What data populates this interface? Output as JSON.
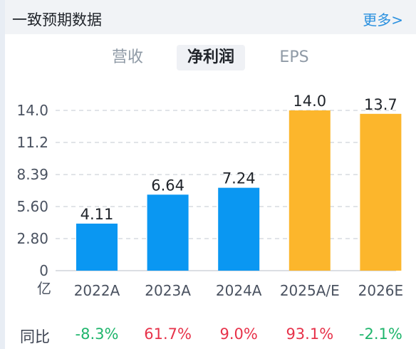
{
  "header": {
    "title": "一致预期数据",
    "more_label": "更多>"
  },
  "tabs": [
    {
      "label": "营收",
      "active": false
    },
    {
      "label": "净利润",
      "active": true
    },
    {
      "label": "EPS",
      "active": false
    }
  ],
  "chart_data": {
    "type": "bar",
    "categories": [
      "2022A",
      "2023A",
      "2024A",
      "2025A/E",
      "2026E"
    ],
    "values": [
      4.11,
      6.64,
      7.24,
      14.0,
      13.7
    ],
    "value_labels": [
      "4.11",
      "6.64",
      "7.24",
      "14.0",
      "13.7"
    ],
    "bar_colors": [
      "#0a97f2",
      "#0a97f2",
      "#0a97f2",
      "#fcb62c",
      "#fcb62c"
    ],
    "yticks": [
      "0",
      "2.80",
      "5.60",
      "8.39",
      "11.2",
      "14.0"
    ],
    "ytick_values": [
      0,
      2.8,
      5.6,
      8.39,
      11.2,
      14.0
    ],
    "ylim": [
      0,
      14.0
    ],
    "unit_label": "亿",
    "grid": true
  },
  "yoy": {
    "label": "同比",
    "values": [
      "-8.3%",
      "61.7%",
      "9.0%",
      "93.1%",
      "-2.1%"
    ],
    "colors": [
      "#1fb56c",
      "#e7324a",
      "#e7324a",
      "#e7324a",
      "#1fb56c"
    ]
  }
}
